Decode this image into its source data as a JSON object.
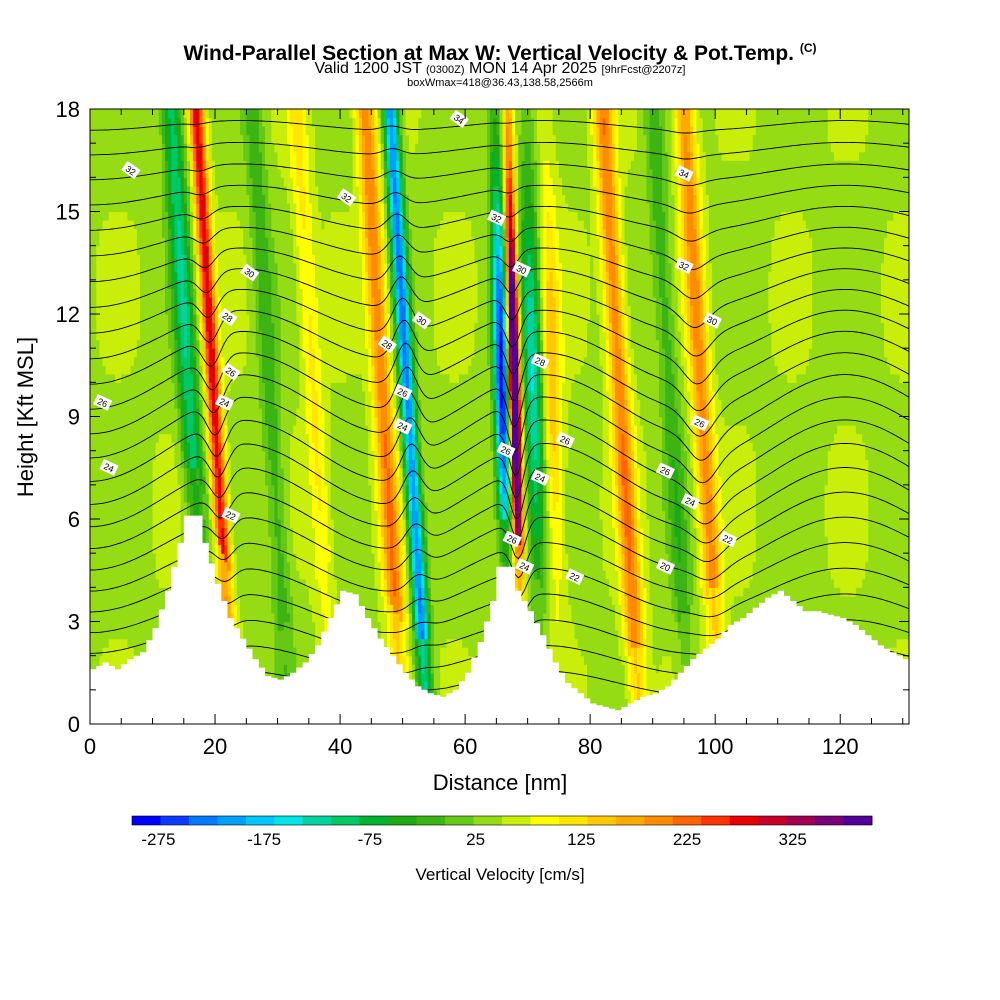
{
  "header": {
    "title": "Wind-Parallel Section at Max W: Vertical Velocity & Pot.Temp.",
    "copyright": "(C)",
    "valid_prefix": "Valid 1200 JST",
    "valid_z": "(0300Z)",
    "valid_date": "MON 14 Apr 2025",
    "forecast": "[9hrFcst@2207z]",
    "box_info": "boxWmax=418@36.43,138.58,2566m"
  },
  "chart_data": {
    "type": "heatmap",
    "xlabel": "Distance [nm]",
    "ylabel": "Height [Kft MSL]",
    "xlim": [
      0,
      131
    ],
    "ylim": [
      0,
      18
    ],
    "x_ticks": [
      0,
      20,
      40,
      60,
      80,
      100,
      120
    ],
    "y_ticks": [
      0,
      3,
      6,
      9,
      12,
      15,
      18
    ],
    "colorbar": {
      "title": "Vertical Velocity [cm/s]",
      "min": -300,
      "max": 400,
      "step": 25,
      "labels": [
        -275,
        -175,
        -75,
        25,
        125,
        225,
        325
      ],
      "colors": [
        "#0000ff",
        "#0a3cff",
        "#0078ff",
        "#00a0ff",
        "#00c8ff",
        "#00e6e6",
        "#00d2a0",
        "#00c864",
        "#00b432",
        "#1eaa14",
        "#3cb414",
        "#64c814",
        "#96dc14",
        "#c8ee0a",
        "#ffff00",
        "#ffe600",
        "#ffc800",
        "#ffaa00",
        "#ff8c00",
        "#ff6400",
        "#ff3200",
        "#e60000",
        "#c80028",
        "#a00050",
        "#780078",
        "#500096"
      ]
    },
    "terrain_kft": [
      [
        0,
        1.6
      ],
      [
        2,
        1.8
      ],
      [
        4,
        1.6
      ],
      [
        6,
        1.9
      ],
      [
        8,
        2.1
      ],
      [
        10,
        2.8
      ],
      [
        12,
        3.9
      ],
      [
        14,
        5.3
      ],
      [
        15,
        6.1
      ],
      [
        17,
        6.1
      ],
      [
        18,
        5.3
      ],
      [
        20,
        4.1
      ],
      [
        22,
        3.1
      ],
      [
        24,
        2.5
      ],
      [
        26,
        1.9
      ],
      [
        28,
        1.4
      ],
      [
        30,
        1.3
      ],
      [
        32,
        1.5
      ],
      [
        34,
        1.8
      ],
      [
        36,
        2.3
      ],
      [
        38,
        3.1
      ],
      [
        40,
        3.9
      ],
      [
        42,
        3.8
      ],
      [
        44,
        3.1
      ],
      [
        46,
        2.5
      ],
      [
        48,
        2.0
      ],
      [
        50,
        1.5
      ],
      [
        52,
        1.1
      ],
      [
        54,
        0.9
      ],
      [
        56,
        0.8
      ],
      [
        58,
        1.0
      ],
      [
        60,
        1.5
      ],
      [
        62,
        2.4
      ],
      [
        64,
        3.6
      ],
      [
        65,
        4.6
      ],
      [
        67,
        4.6
      ],
      [
        68,
        3.9
      ],
      [
        70,
        3.3
      ],
      [
        72,
        2.6
      ],
      [
        74,
        1.8
      ],
      [
        76,
        1.2
      ],
      [
        78,
        0.9
      ],
      [
        80,
        0.6
      ],
      [
        82,
        0.5
      ],
      [
        84,
        0.4
      ],
      [
        86,
        0.6
      ],
      [
        88,
        0.8
      ],
      [
        90,
        0.9
      ],
      [
        92,
        1.1
      ],
      [
        94,
        1.5
      ],
      [
        96,
        1.9
      ],
      [
        98,
        2.2
      ],
      [
        100,
        2.5
      ],
      [
        102,
        2.9
      ],
      [
        104,
        3.1
      ],
      [
        106,
        3.4
      ],
      [
        108,
        3.7
      ],
      [
        110,
        3.9
      ],
      [
        112,
        3.6
      ],
      [
        114,
        3.3
      ],
      [
        116,
        3.3
      ],
      [
        118,
        3.2
      ],
      [
        120,
        3.1
      ],
      [
        122,
        2.9
      ],
      [
        124,
        2.6
      ],
      [
        126,
        2.3
      ],
      [
        128,
        2.1
      ],
      [
        130,
        1.9
      ],
      [
        131,
        1.7
      ]
    ],
    "updraft_bands": [
      {
        "x": 20,
        "peak_w": 225
      },
      {
        "x": 47,
        "peak_w": 150
      },
      {
        "x": 68,
        "peak_w": 418
      },
      {
        "x": 85,
        "peak_w": 150
      },
      {
        "x": 98,
        "peak_w": 140
      },
      {
        "x": 74,
        "peak_w": 90
      },
      {
        "x": 36,
        "peak_w": 60
      }
    ],
    "downdraft_bands": [
      {
        "x": 16,
        "peak_w": -140
      },
      {
        "x": 51,
        "peak_w": -250
      },
      {
        "x": 66,
        "peak_w": -270
      },
      {
        "x": 71,
        "peak_w": -150
      },
      {
        "x": 93,
        "peak_w": -60
      },
      {
        "x": 29,
        "peak_w": -60
      }
    ],
    "contour_labels": [
      {
        "x": 6.5,
        "y": 16.2,
        "t": "32"
      },
      {
        "x": 59,
        "y": 17.7,
        "t": "34"
      },
      {
        "x": 41,
        "y": 15.4,
        "t": "32"
      },
      {
        "x": 65,
        "y": 14.8,
        "t": "32"
      },
      {
        "x": 95,
        "y": 16.1,
        "t": "34"
      },
      {
        "x": 95,
        "y": 13.4,
        "t": "32"
      },
      {
        "x": 25.5,
        "y": 13.2,
        "t": "30"
      },
      {
        "x": 53,
        "y": 11.8,
        "t": "30"
      },
      {
        "x": 69,
        "y": 13.3,
        "t": "30"
      },
      {
        "x": 99.5,
        "y": 11.8,
        "t": "30"
      },
      {
        "x": 22,
        "y": 11.9,
        "t": "28"
      },
      {
        "x": 47.5,
        "y": 11.1,
        "t": "28"
      },
      {
        "x": 72,
        "y": 10.6,
        "t": "28"
      },
      {
        "x": 22.5,
        "y": 10.3,
        "t": "26"
      },
      {
        "x": 50,
        "y": 9.7,
        "t": "26"
      },
      {
        "x": 66.5,
        "y": 8.0,
        "t": "26"
      },
      {
        "x": 76,
        "y": 8.3,
        "t": "26"
      },
      {
        "x": 97.5,
        "y": 8.8,
        "t": "26"
      },
      {
        "x": 2,
        "y": 9.4,
        "t": "26"
      },
      {
        "x": 92,
        "y": 7.4,
        "t": "26"
      },
      {
        "x": 21.5,
        "y": 9.4,
        "t": "24"
      },
      {
        "x": 50,
        "y": 8.7,
        "t": "24"
      },
      {
        "x": 72,
        "y": 7.2,
        "t": "24"
      },
      {
        "x": 96,
        "y": 6.5,
        "t": "24"
      },
      {
        "x": 3,
        "y": 7.5,
        "t": "24"
      },
      {
        "x": 67.5,
        "y": 5.4,
        "t": "26"
      },
      {
        "x": 69.5,
        "y": 4.6,
        "t": "24"
      },
      {
        "x": 22.5,
        "y": 6.1,
        "t": "22"
      },
      {
        "x": 77.5,
        "y": 4.3,
        "t": "22"
      },
      {
        "x": 102,
        "y": 5.4,
        "t": "22"
      },
      {
        "x": 92,
        "y": 4.6,
        "t": "20"
      }
    ]
  }
}
